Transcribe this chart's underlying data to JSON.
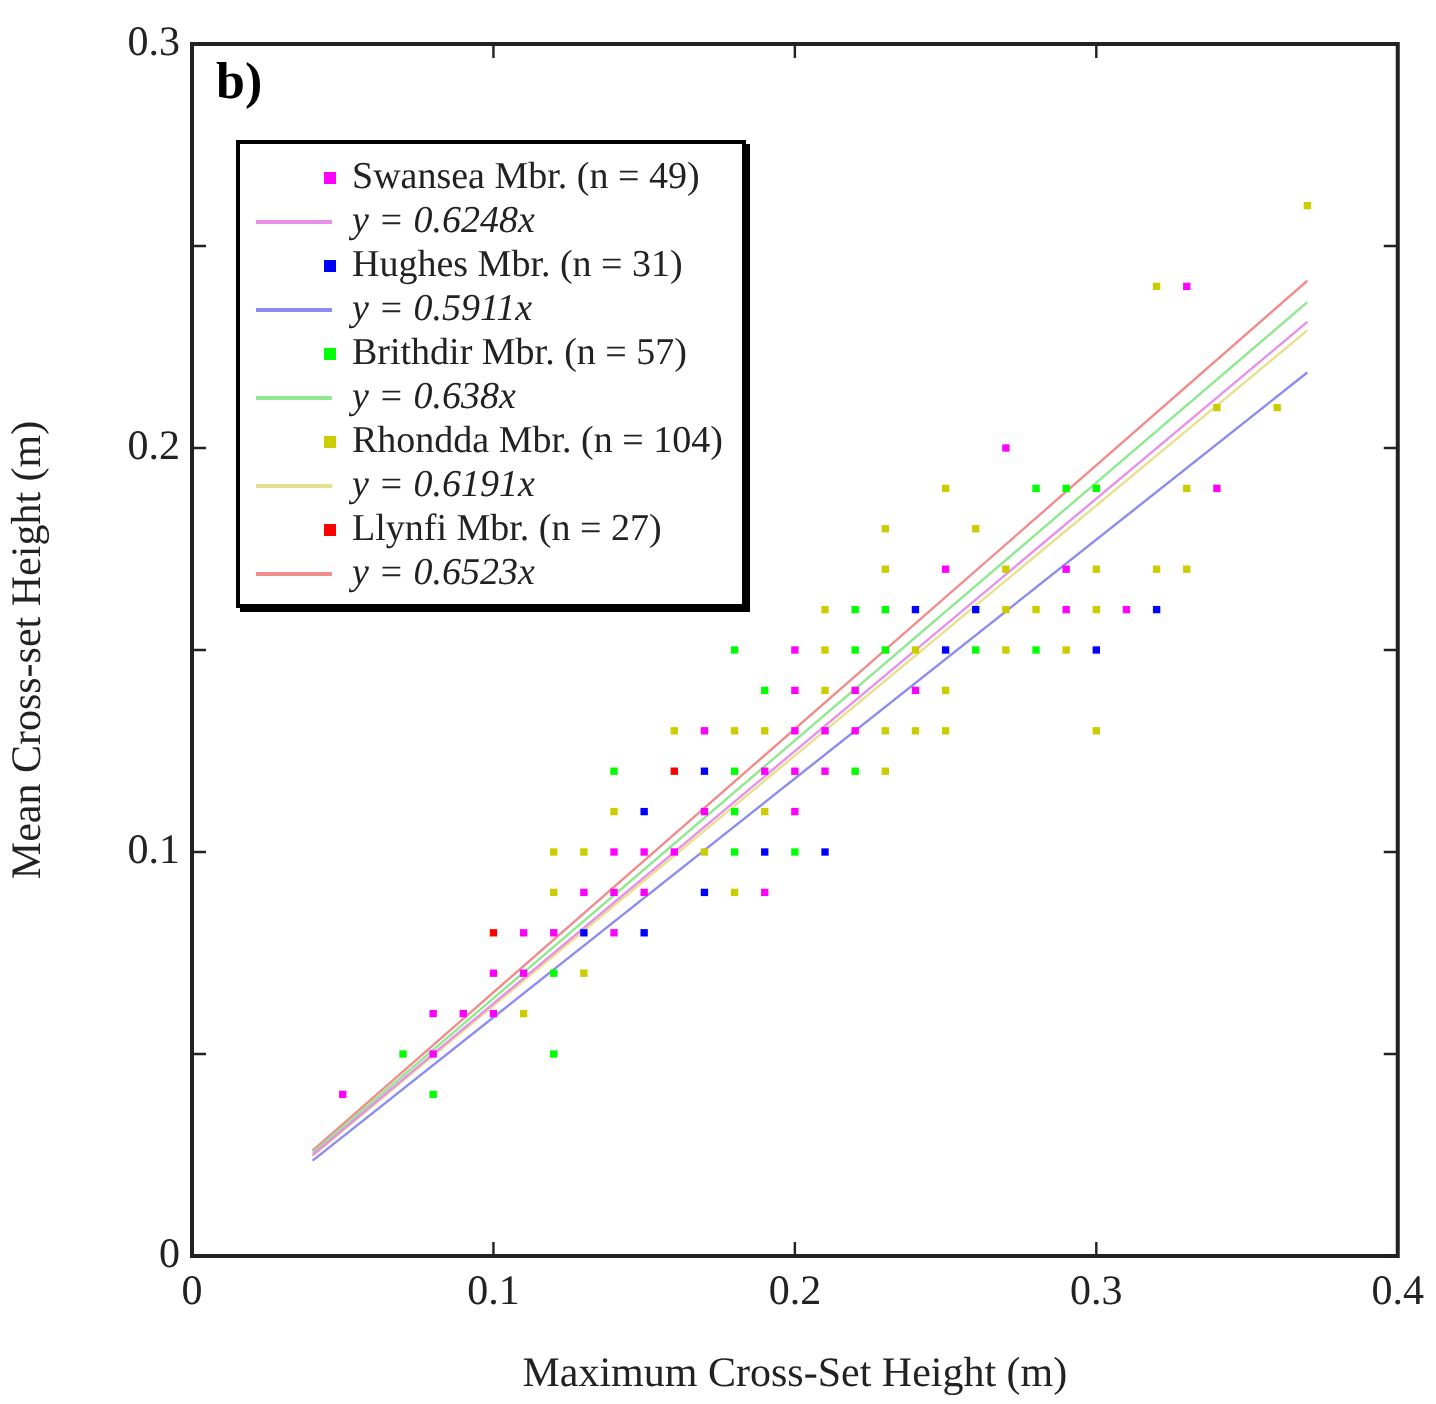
{
  "chart_data": {
    "type": "scatter",
    "xlabel": "Maximum Cross-Set Height (m)",
    "ylabel": "Mean Cross-set Height (m)",
    "annotations": [
      "b)"
    ],
    "xlim": [
      0,
      0.4
    ],
    "xticks": [
      0,
      0.1,
      0.2,
      0.3,
      0.4
    ],
    "ylim": [
      0,
      0.3
    ],
    "yticks": [
      0,
      {
        "value": 0.05,
        "label": null
      },
      0.1,
      {
        "value": 0.15,
        "label": null
      },
      0.2,
      {
        "value": 0.25,
        "label": null
      },
      0.3
    ],
    "grid": false,
    "legend": "top left",
    "series": [
      {
        "name": "Swansea Mbr. (n = 49)",
        "marker": "square",
        "color": "#ff00ff",
        "x": [
          0.05,
          0.08,
          0.08,
          0.09,
          0.1,
          0.1,
          0.11,
          0.11,
          0.12,
          0.14,
          0.13,
          0.14,
          0.15,
          0.19,
          0.14,
          0.15,
          0.16,
          0.17,
          0.2,
          0.19,
          0.2,
          0.21,
          0.17,
          0.2,
          0.21,
          0.22,
          0.2,
          0.22,
          0.24,
          0.2,
          0.25,
          0.29,
          0.29,
          0.31,
          0.34,
          0.27,
          0.33
        ],
        "values": [
          0.04,
          0.05,
          0.06,
          0.06,
          0.06,
          0.07,
          0.07,
          0.08,
          0.08,
          0.08,
          0.09,
          0.09,
          0.09,
          0.09,
          0.1,
          0.1,
          0.1,
          0.11,
          0.11,
          0.12,
          0.12,
          0.12,
          0.13,
          0.13,
          0.13,
          0.13,
          0.14,
          0.14,
          0.14,
          0.15,
          0.17,
          0.17,
          0.16,
          0.16,
          0.19,
          0.2,
          0.24
        ]
      },
      {
        "name": "y = 0.6248x",
        "type": "line",
        "marker": "none",
        "color": "#e890e8",
        "x": [
          0.04,
          0.37
        ],
        "values": [
          0.025,
          0.2312
        ]
      },
      {
        "name": "Hughes Mbr. (n = 31)",
        "marker": "square",
        "color": "#0000ff",
        "x": [
          0.13,
          0.15,
          0.15,
          0.17,
          0.17,
          0.19,
          0.21,
          0.24,
          0.26,
          0.32,
          0.25,
          0.3
        ],
        "values": [
          0.08,
          0.08,
          0.11,
          0.12,
          0.09,
          0.1,
          0.1,
          0.16,
          0.16,
          0.16,
          0.15,
          0.15
        ]
      },
      {
        "name": "y = 0.5911x",
        "type": "line",
        "marker": "none",
        "color": "#8c8cee",
        "x": [
          0.04,
          0.37
        ],
        "values": [
          0.0236,
          0.2187
        ]
      },
      {
        "name": "Brithdir Mbr. (n = 57)",
        "marker": "square",
        "color": "#00ff00",
        "x": [
          0.08,
          0.07,
          0.12,
          0.12,
          0.14,
          0.18,
          0.2,
          0.18,
          0.18,
          0.22,
          0.19,
          0.18,
          0.22,
          0.23,
          0.26,
          0.28,
          0.22,
          0.23,
          0.28,
          0.29,
          0.3
        ],
        "values": [
          0.04,
          0.05,
          0.05,
          0.07,
          0.12,
          0.1,
          0.1,
          0.11,
          0.12,
          0.12,
          0.14,
          0.15,
          0.15,
          0.15,
          0.15,
          0.15,
          0.16,
          0.16,
          0.19,
          0.19,
          0.19
        ]
      },
      {
        "name": "y = 0.638x",
        "type": "line",
        "marker": "none",
        "color": "#90e890",
        "x": [
          0.04,
          0.37
        ],
        "values": [
          0.0255,
          0.2361
        ]
      },
      {
        "name": "Rhondda Mbr. (n = 104)",
        "marker": "square",
        "color": "#cccc00",
        "x": [
          0.11,
          0.13,
          0.12,
          0.12,
          0.13,
          0.14,
          0.16,
          0.17,
          0.18,
          0.18,
          0.19,
          0.19,
          0.21,
          0.21,
          0.21,
          0.23,
          0.23,
          0.23,
          0.23,
          0.24,
          0.24,
          0.25,
          0.25,
          0.25,
          0.26,
          0.27,
          0.27,
          0.27,
          0.28,
          0.29,
          0.3,
          0.3,
          0.3,
          0.32,
          0.32,
          0.33,
          0.33,
          0.34,
          0.36,
          0.37
        ],
        "values": [
          0.06,
          0.07,
          0.09,
          0.1,
          0.1,
          0.11,
          0.13,
          0.1,
          0.13,
          0.09,
          0.13,
          0.11,
          0.16,
          0.15,
          0.14,
          0.12,
          0.13,
          0.17,
          0.18,
          0.13,
          0.15,
          0.13,
          0.14,
          0.19,
          0.18,
          0.15,
          0.16,
          0.17,
          0.16,
          0.15,
          0.13,
          0.16,
          0.17,
          0.17,
          0.24,
          0.17,
          0.19,
          0.21,
          0.21,
          0.26
        ]
      },
      {
        "name": "y = 0.6191x",
        "type": "line",
        "marker": "none",
        "color": "#e8e08c",
        "x": [
          0.04,
          0.37
        ],
        "values": [
          0.0248,
          0.2291
        ]
      },
      {
        "name": "Llynfi Mbr. (n = 27)",
        "marker": "square",
        "color": "#ff0000",
        "x": [
          0.1,
          0.16
        ],
        "values": [
          0.08,
          0.12
        ]
      },
      {
        "name": "y = 0.6523x",
        "type": "line",
        "marker": "none",
        "color": "#f08c8c",
        "x": [
          0.04,
          0.37
        ],
        "values": [
          0.0261,
          0.2414
        ]
      }
    ]
  }
}
